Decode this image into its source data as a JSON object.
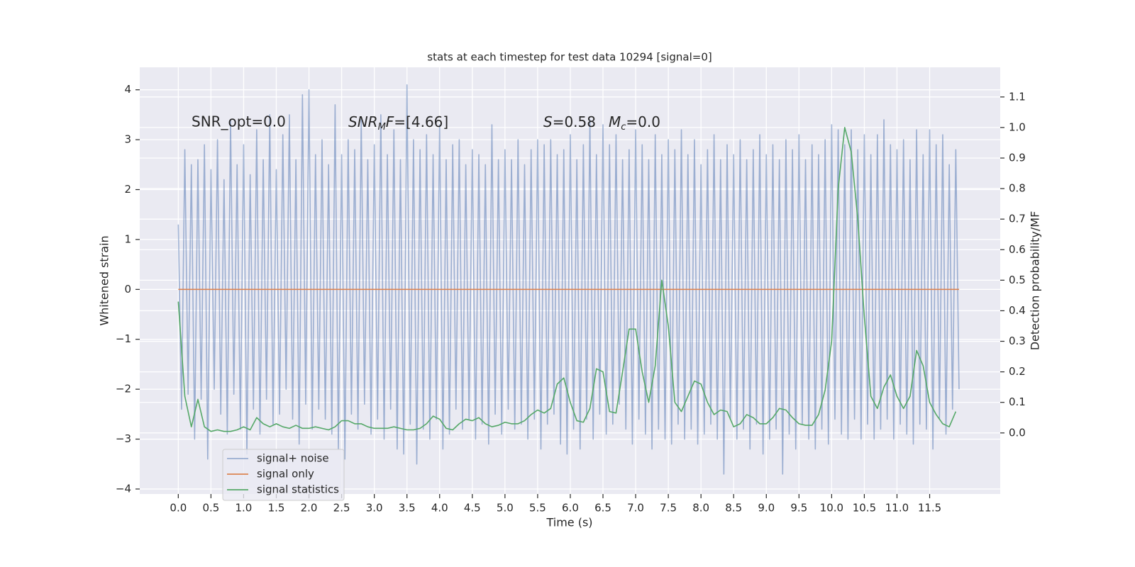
{
  "chart_data": {
    "type": "line",
    "title": "stats at each timestep for test data 10294 [signal=0]",
    "xlabel": "Time (s)",
    "ylabel": "Whitened strain",
    "y2label": "Detection probability/MF",
    "annotations": [
      "SNR_opt=0.0",
      [
        "SNR",
        "M",
        "F",
        "=[4.66]"
      ],
      [
        "S",
        "=0.58",
        "M",
        "c",
        "=0.0"
      ]
    ],
    "xlim": [
      -0.59,
      12.58
    ],
    "xticks": [
      {
        "value": 0,
        "label": "0.0"
      },
      0.5,
      {
        "value": 1,
        "label": "1.0"
      },
      1.5,
      {
        "value": 2,
        "label": "2.0"
      },
      2.5,
      {
        "value": 3,
        "label": "3.0"
      },
      3.5,
      {
        "value": 4,
        "label": "4.0"
      },
      4.5,
      {
        "value": 5,
        "label": "5.0"
      },
      5.5,
      {
        "value": 6,
        "label": "6.0"
      },
      6.5,
      {
        "value": 7,
        "label": "7.0"
      },
      7.5,
      {
        "value": 8,
        "label": "8.0"
      },
      8.5,
      {
        "value": 9,
        "label": "9.0"
      },
      9.5,
      {
        "value": 10,
        "label": "10.0"
      },
      10.5,
      {
        "value": 11,
        "label": "11.0"
      },
      11.5
    ],
    "ylim": [
      -4.1,
      4.45
    ],
    "yticks": [
      {
        "value": -4,
        "label": "−4"
      },
      {
        "value": -3,
        "label": "−3"
      },
      {
        "value": -2,
        "label": "−2"
      },
      {
        "value": -1,
        "label": "−1"
      },
      0,
      1,
      2,
      3,
      4
    ],
    "y2lim": [
      -0.2,
      1.197
    ],
    "y2ticks": [
      {
        "value": 0,
        "label": "0.0"
      },
      0.1,
      0.2,
      0.3,
      0.4,
      0.5,
      0.6,
      0.7,
      0.8,
      0.9,
      {
        "value": 1,
        "label": "1.0"
      },
      1.1
    ],
    "grid": true,
    "legend": "lower left",
    "series": [
      {
        "name": "signal+ noise",
        "color": "#4c72b0",
        "opacity": 0.5,
        "x": [
          0,
          0.05,
          0.1,
          0.15,
          0.2,
          0.25,
          0.3,
          0.35,
          0.4,
          0.45,
          0.5,
          0.55,
          0.6,
          0.65,
          0.7,
          0.75,
          0.8,
          0.85,
          0.9,
          0.95,
          1,
          1.05,
          1.1,
          1.15,
          1.2,
          1.25,
          1.3,
          1.35,
          1.4,
          1.45,
          1.5,
          1.55,
          1.6,
          1.65,
          1.7,
          1.75,
          1.8,
          1.85,
          1.9,
          1.95,
          2,
          2.05,
          2.1,
          2.15,
          2.2,
          2.25,
          2.3,
          2.35,
          2.4,
          2.45,
          2.5,
          2.55,
          2.6,
          2.65,
          2.7,
          2.75,
          2.8,
          2.85,
          2.9,
          2.95,
          3,
          3.05,
          3.1,
          3.15,
          3.2,
          3.25,
          3.3,
          3.35,
          3.4,
          3.45,
          3.5,
          3.55,
          3.6,
          3.65,
          3.7,
          3.75,
          3.8,
          3.85,
          3.9,
          3.95,
          4,
          4.05,
          4.1,
          4.15,
          4.2,
          4.25,
          4.3,
          4.35,
          4.4,
          4.45,
          4.5,
          4.55,
          4.6,
          4.65,
          4.7,
          4.75,
          4.8,
          4.85,
          4.9,
          4.95,
          5,
          5.05,
          5.1,
          5.15,
          5.2,
          5.25,
          5.3,
          5.35,
          5.4,
          5.45,
          5.5,
          5.55,
          5.6,
          5.65,
          5.7,
          5.75,
          5.8,
          5.85,
          5.9,
          5.95,
          6,
          6.05,
          6.1,
          6.15,
          6.2,
          6.25,
          6.3,
          6.35,
          6.4,
          6.45,
          6.5,
          6.55,
          6.6,
          6.65,
          6.7,
          6.75,
          6.8,
          6.85,
          6.9,
          6.95,
          7,
          7.05,
          7.1,
          7.15,
          7.2,
          7.25,
          7.3,
          7.35,
          7.4,
          7.45,
          7.5,
          7.55,
          7.6,
          7.65,
          7.7,
          7.75,
          7.8,
          7.85,
          7.9,
          7.95,
          8,
          8.05,
          8.1,
          8.15,
          8.2,
          8.25,
          8.3,
          8.35,
          8.4,
          8.45,
          8.5,
          8.55,
          8.6,
          8.65,
          8.7,
          8.75,
          8.8,
          8.85,
          8.9,
          8.95,
          9,
          9.05,
          9.1,
          9.15,
          9.2,
          9.25,
          9.3,
          9.35,
          9.4,
          9.45,
          9.5,
          9.55,
          9.6,
          9.65,
          9.7,
          9.75,
          9.8,
          9.85,
          9.9,
          9.95,
          10,
          10.05,
          10.1,
          10.15,
          10.2,
          10.25,
          10.3,
          10.35,
          10.4,
          10.45,
          10.5,
          10.55,
          10.6,
          10.65,
          10.7,
          10.75,
          10.8,
          10.85,
          10.9,
          10.95,
          11,
          11.05,
          11.1,
          11.15,
          11.2,
          11.25,
          11.3,
          11.35,
          11.4,
          11.45,
          11.5,
          11.55,
          11.6,
          11.65,
          11.7,
          11.75,
          11.8,
          11.85,
          11.9,
          11.95
        ],
        "values": [
          1.3,
          -2.4,
          2.8,
          -2.1,
          2.5,
          -3.0,
          2.6,
          -2.2,
          2.9,
          -3.4,
          2.4,
          -2.0,
          3.0,
          -2.5,
          2.2,
          -2.9,
          3.4,
          -2.1,
          2.5,
          -2.8,
          2.9,
          -3.3,
          2.3,
          -2.4,
          3.2,
          -2.9,
          2.6,
          -2.2,
          3.5,
          -2.7,
          2.4,
          -2.5,
          3.1,
          -2.0,
          3.5,
          -2.6,
          2.6,
          -3.1,
          3.9,
          -2.3,
          4.0,
          -2.8,
          2.7,
          -2.4,
          3.0,
          -2.6,
          2.5,
          -2.9,
          3.7,
          -3.2,
          2.7,
          -3.4,
          3.0,
          -2.5,
          2.8,
          -2.8,
          3.4,
          -2.3,
          2.6,
          -2.9,
          2.9,
          -2.6,
          3.5,
          -3.0,
          2.7,
          -2.4,
          3.2,
          -3.2,
          2.6,
          -3.3,
          4.1,
          -2.7,
          3.0,
          -3.5,
          2.8,
          -2.8,
          3.1,
          -3.0,
          2.7,
          -2.6,
          3.3,
          -3.2,
          2.6,
          -2.9,
          2.9,
          -2.4,
          3.0,
          -2.8,
          2.5,
          -2.6,
          2.8,
          -3.0,
          2.7,
          -2.7,
          2.5,
          -3.1,
          3.3,
          -2.5,
          2.6,
          -2.9,
          2.8,
          -2.4,
          2.6,
          -2.8,
          3.0,
          -2.7,
          2.5,
          -3.0,
          2.8,
          -2.6,
          3.0,
          -3.2,
          2.9,
          -2.7,
          3.0,
          -2.5,
          2.7,
          -3.1,
          2.8,
          -3.3,
          3.1,
          -2.8,
          2.6,
          -3.2,
          2.9,
          -2.6,
          3.4,
          -3.0,
          2.7,
          -2.5,
          3.3,
          -2.9,
          2.9,
          -2.7,
          3.1,
          -2.3,
          2.6,
          -2.8,
          2.8,
          -3.1,
          3.2,
          -2.6,
          2.9,
          -2.9,
          2.6,
          -3.2,
          3.1,
          -2.8,
          2.7,
          -3.0,
          3.0,
          -3.1,
          2.8,
          -2.7,
          3.2,
          -3.0,
          2.7,
          -2.8,
          3.0,
          -3.1,
          2.5,
          -2.9,
          2.8,
          -2.7,
          3.1,
          -3.0,
          2.6,
          -3.7,
          2.9,
          -2.6,
          2.7,
          -3.0,
          3.0,
          -2.8,
          2.6,
          -3.2,
          2.8,
          -2.7,
          3.1,
          -3.3,
          2.7,
          -3.0,
          2.9,
          -2.8,
          2.6,
          -3.7,
          3.0,
          -2.9,
          2.8,
          -3.2,
          3.1,
          -2.7,
          2.6,
          -3.0,
          2.9,
          -3.2,
          2.7,
          -2.8,
          3.0,
          -3.1,
          3.3,
          -2.6,
          3.2,
          -2.9,
          2.9,
          -3.0,
          3.2,
          -2.6,
          2.8,
          -3.0,
          3.1,
          -2.7,
          2.7,
          -3.0,
          3.1,
          -2.8,
          3.4,
          -2.6,
          2.9,
          -3.0,
          2.8,
          -2.7,
          3.0,
          -2.9,
          2.6,
          -3.1,
          3.2,
          -2.7,
          2.7,
          -2.8,
          3.2,
          -3.2,
          2.9,
          -2.6,
          3.1,
          -2.9,
          2.5,
          -2.4,
          2.8,
          -2.0
        ]
      },
      {
        "name": "signal only",
        "color": "#dd8452",
        "x": [
          0,
          11.95
        ],
        "values": [
          0,
          0
        ]
      },
      {
        "name": "signal statistics",
        "color": "#55a868",
        "axis": "y2",
        "x": [
          0,
          0.1,
          0.2,
          0.3,
          0.4,
          0.5,
          0.6,
          0.7,
          0.8,
          0.9,
          1,
          1.1,
          1.2,
          1.3,
          1.4,
          1.5,
          1.6,
          1.7,
          1.8,
          1.9,
          2,
          2.1,
          2.2,
          2.3,
          2.4,
          2.5,
          2.6,
          2.7,
          2.8,
          2.9,
          3,
          3.1,
          3.2,
          3.3,
          3.4,
          3.5,
          3.6,
          3.7,
          3.8,
          3.9,
          4,
          4.1,
          4.2,
          4.3,
          4.4,
          4.5,
          4.6,
          4.7,
          4.8,
          4.9,
          5,
          5.1,
          5.2,
          5.3,
          5.4,
          5.5,
          5.6,
          5.7,
          5.8,
          5.9,
          6,
          6.1,
          6.2,
          6.3,
          6.4,
          6.5,
          6.6,
          6.7,
          6.8,
          6.9,
          7,
          7.1,
          7.2,
          7.3,
          7.4,
          7.5,
          7.6,
          7.7,
          7.8,
          7.9,
          8,
          8.1,
          8.2,
          8.3,
          8.4,
          8.5,
          8.6,
          8.7,
          8.8,
          8.9,
          9,
          9.1,
          9.2,
          9.3,
          9.4,
          9.5,
          9.6,
          9.7,
          9.8,
          9.9,
          10,
          10.1,
          10.2,
          10.3,
          10.4,
          10.5,
          10.6,
          10.7,
          10.8,
          10.9,
          11,
          11.1,
          11.2,
          11.3,
          11.4,
          11.5,
          11.6,
          11.7,
          11.8,
          11.9
        ],
        "values": [
          0.43,
          0.12,
          0.02,
          0.11,
          0.02,
          0.005,
          0.01,
          0.005,
          0.005,
          0.01,
          0.02,
          0.01,
          0.05,
          0.03,
          0.02,
          0.03,
          0.02,
          0.015,
          0.025,
          0.015,
          0.015,
          0.02,
          0.015,
          0.01,
          0.02,
          0.04,
          0.04,
          0.03,
          0.03,
          0.02,
          0.015,
          0.015,
          0.015,
          0.02,
          0.015,
          0.01,
          0.01,
          0.015,
          0.03,
          0.055,
          0.045,
          0.015,
          0.01,
          0.03,
          0.045,
          0.04,
          0.05,
          0.03,
          0.02,
          0.025,
          0.035,
          0.03,
          0.03,
          0.04,
          0.06,
          0.075,
          0.065,
          0.08,
          0.16,
          0.18,
          0.1,
          0.04,
          0.035,
          0.08,
          0.21,
          0.2,
          0.07,
          0.065,
          0.2,
          0.34,
          0.34,
          0.2,
          0.1,
          0.22,
          0.5,
          0.35,
          0.1,
          0.07,
          0.12,
          0.17,
          0.16,
          0.1,
          0.06,
          0.075,
          0.07,
          0.02,
          0.03,
          0.06,
          0.05,
          0.03,
          0.03,
          0.05,
          0.08,
          0.075,
          0.05,
          0.03,
          0.025,
          0.025,
          0.06,
          0.14,
          0.3,
          0.8,
          1.0,
          0.92,
          0.7,
          0.38,
          0.12,
          0.08,
          0.15,
          0.19,
          0.12,
          0.08,
          0.12,
          0.27,
          0.22,
          0.1,
          0.06,
          0.03,
          0.02,
          0.07
        ]
      }
    ]
  }
}
